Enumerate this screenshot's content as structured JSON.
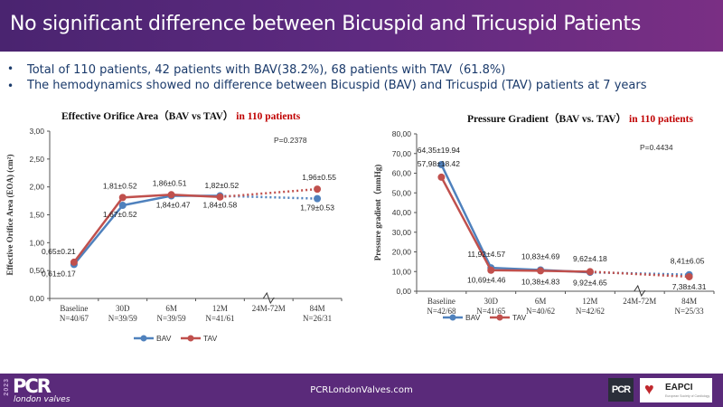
{
  "header": {
    "title": "No significant difference between Bicuspid and Tricuspid Patients"
  },
  "bullets": [
    "Total of 110 patients, 42 patients with BAV(38.2%), 68 patients with TAV（61.8%)",
    "The hemodynamics showed no difference between Bicuspid (BAV) and  Tricuspid (TAV) patients at 7 years"
  ],
  "colors": {
    "bav": "#4f81bd",
    "tav": "#c0504d",
    "title_red": "#c00000"
  },
  "chart_data": [
    {
      "type": "line",
      "title": "Effective Orifice Area（BAV vs TAV）",
      "title_highlight": "in 110 patients",
      "ylabel": "Effective Orifice Area (EOA) (cm²)",
      "ylim": [
        0,
        3
      ],
      "yticks": [
        "0,00",
        "0,50",
        "1,00",
        "1,50",
        "2,00",
        "2,50",
        "3,00"
      ],
      "ytick_values": [
        0,
        0.5,
        1,
        1.5,
        2,
        2.5,
        3
      ],
      "categories": [
        "Baseline",
        "30D",
        "6M",
        "12M",
        "24M-72M",
        "84M"
      ],
      "category_n": [
        "N=40/67",
        "N=39/59",
        "N=39/59",
        "N=41/61",
        "",
        "N=26/31"
      ],
      "annotation": "P=0.2378",
      "series": [
        {
          "name": "BAV",
          "values": [
            0.61,
            1.67,
            1.84,
            1.84,
            null,
            1.79
          ],
          "labels": [
            "0,61±0.17",
            "1,67±0.52",
            "1,84±0.47",
            "1,84±0.58",
            "",
            "1,79±0.53"
          ]
        },
        {
          "name": "TAV",
          "values": [
            0.65,
            1.81,
            1.86,
            1.82,
            null,
            1.96
          ],
          "labels": [
            "0,65±0.21",
            "1,81±0.52",
            "1,86±0.51",
            "1,82±0.52",
            "",
            "1,96±0.55"
          ]
        }
      ],
      "legend": [
        "BAV",
        "TAV"
      ],
      "legend_position": "bottom"
    },
    {
      "type": "line",
      "title": "Pressure Gradient（BAV vs. TAV）",
      "title_highlight": "in 110 patients",
      "ylabel": "Pressure gradient（mmHg)",
      "ylim": [
        0,
        80
      ],
      "yticks": [
        "0,00",
        "10,00",
        "20,00",
        "30,00",
        "40,00",
        "50,00",
        "60,00",
        "70,00",
        "80,00"
      ],
      "ytick_values": [
        0,
        10,
        20,
        30,
        40,
        50,
        60,
        70,
        80
      ],
      "categories": [
        "Baseline",
        "30D",
        "6M",
        "12M",
        "24M-72M",
        "84M"
      ],
      "category_n": [
        "N=42/68",
        "N=41/65",
        "N=40/62",
        "N=42/62",
        "",
        "N=25/33"
      ],
      "annotation": "P=0.4434",
      "series": [
        {
          "name": "BAV",
          "values": [
            64.35,
            11.92,
            10.83,
            9.62,
            null,
            8.41
          ],
          "labels": [
            "64,35±19.94",
            "11,92±4.57",
            "10,83±4.69",
            "9,62±4.18",
            "",
            "8,41±6.05"
          ]
        },
        {
          "name": "TAV",
          "values": [
            57.98,
            10.69,
            10.38,
            9.92,
            null,
            7.38
          ],
          "labels": [
            "57,98±18.42",
            "10,69±4.46",
            "10,38±4.83",
            "9,92±4.65",
            "",
            "7,38±4.31"
          ]
        }
      ],
      "legend": [
        "BAV",
        "TAV"
      ],
      "legend_position": "bottom"
    }
  ],
  "footer": {
    "year": "2023",
    "logo_main": "PCR",
    "logo_sub": "london valves",
    "url": "PCRLondonValves.com",
    "partner_logo_1": "PCR",
    "partner_logo_2": "EAPCI",
    "partner_logo_2_sub": "European Society of Cardiology"
  }
}
